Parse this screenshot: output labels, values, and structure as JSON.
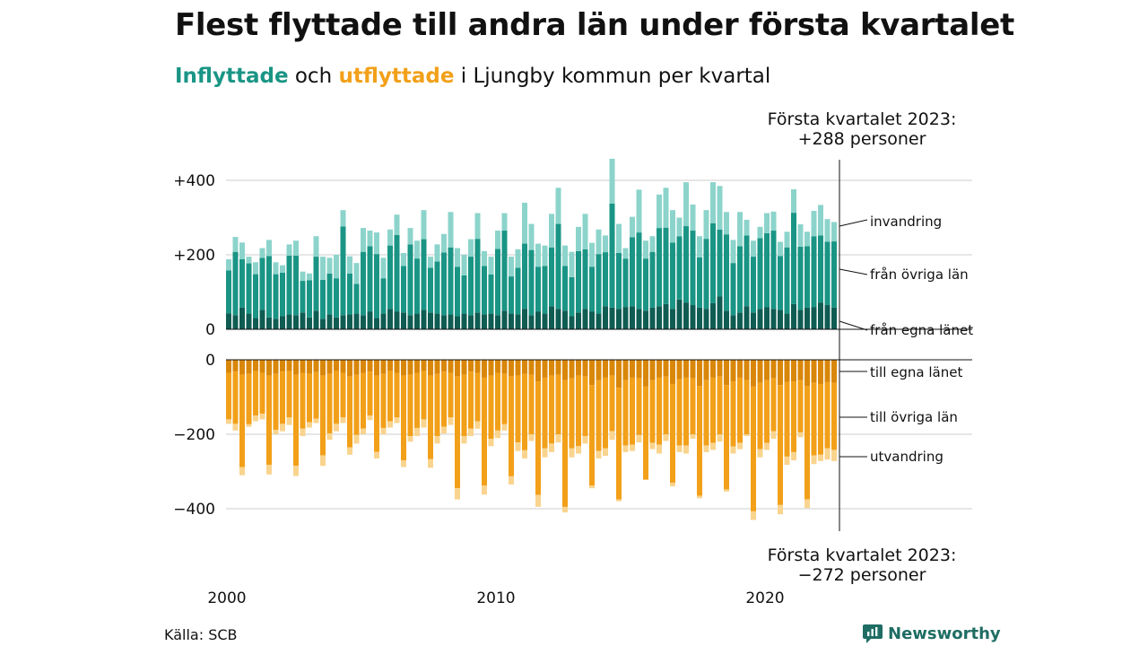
{
  "title": "Flest flyttade till andra län under första kvartalet",
  "subtitle": {
    "in_word": "Inflyttade",
    "and_word": " och ",
    "out_word": "utflyttade",
    "rest": " i Ljungby kommun per kvartal"
  },
  "source": "Källa: SCB",
  "brand": "Newsworthy",
  "colors": {
    "in_dark": "#0f5c53",
    "in_mid": "#1a9585",
    "in_light": "#8cd4cb",
    "out_dark": "#d9870a",
    "out_mid": "#f2a019",
    "out_light": "#f9d48e",
    "brand": "#1f6d64"
  },
  "chart_data": {
    "type": "bar",
    "stacked": true,
    "x_start": "2000 Q1",
    "x_end": "2023 Q1",
    "x_ticks": [
      "2000",
      "2010",
      "2020"
    ],
    "y_ticks_top": [
      "+400",
      "+200",
      "0"
    ],
    "y_ticks_bottom": [
      "0",
      "−200",
      "−400"
    ],
    "ylim_top": [
      0,
      440
    ],
    "ylim_bottom": [
      -440,
      0
    ],
    "annotation_top": [
      "Första kvartalet 2023:",
      "+288 personer"
    ],
    "annotation_bottom": [
      "Första kvartalet 2023:",
      "−272 personer"
    ],
    "series_labels": {
      "invandring": "invandring",
      "fran_ovriga_lan": "från övriga län",
      "fran_egna_lanet": "från egna länet",
      "till_egna_lanet": "till egna länet",
      "till_ovriga_lan": "till övriga län",
      "utvandring": "utvandring"
    },
    "inflyttade_totals": [
      188,
      248,
      233,
      195,
      180,
      218,
      240,
      180,
      172,
      228,
      238,
      155,
      150,
      250,
      195,
      192,
      200,
      320,
      196,
      178,
      272,
      265,
      260,
      192,
      268,
      308,
      205,
      272,
      238,
      320,
      195,
      228,
      256,
      315,
      218,
      200,
      242,
      312,
      210,
      195,
      265,
      312,
      195,
      215,
      340,
      283,
      230,
      225,
      310,
      380,
      225,
      208,
      275,
      310,
      232,
      268,
      252,
      458,
      283,
      218,
      302,
      375,
      238,
      250,
      362,
      380,
      320,
      300,
      395,
      335,
      250,
      320,
      395,
      385,
      315,
      240,
      315,
      294,
      238,
      275,
      312,
      316,
      235,
      262,
      376,
      282,
      262,
      318,
      334,
      296,
      288
    ],
    "fran_egna_lanet": [
      43,
      38,
      58,
      42,
      30,
      52,
      32,
      28,
      35,
      40,
      38,
      45,
      32,
      50,
      28,
      40,
      32,
      38,
      40,
      42,
      38,
      48,
      30,
      42,
      55,
      48,
      45,
      38,
      42,
      52,
      45,
      42,
      38,
      40,
      35,
      42,
      38,
      45,
      40,
      42,
      38,
      50,
      42,
      40,
      55,
      38,
      48,
      42,
      62,
      55,
      50,
      35,
      45,
      55,
      48,
      42,
      62,
      58,
      55,
      60,
      62,
      55,
      50,
      58,
      62,
      68,
      55,
      80,
      72,
      65,
      58,
      55,
      70,
      88,
      50,
      38,
      45,
      62,
      45,
      55,
      60,
      55,
      52,
      42,
      68,
      52,
      58,
      60,
      72,
      65,
      58
    ],
    "fran_ovriga_lan": [
      115,
      170,
      130,
      135,
      118,
      140,
      165,
      120,
      117,
      158,
      160,
      85,
      100,
      145,
      105,
      110,
      105,
      238,
      110,
      80,
      170,
      175,
      172,
      95,
      170,
      205,
      125,
      190,
      148,
      190,
      120,
      140,
      168,
      180,
      133,
      103,
      157,
      198,
      130,
      105,
      178,
      215,
      100,
      125,
      175,
      175,
      120,
      128,
      158,
      228,
      120,
      105,
      165,
      160,
      120,
      160,
      145,
      280,
      150,
      130,
      185,
      205,
      140,
      150,
      210,
      205,
      178,
      170,
      205,
      200,
      135,
      188,
      215,
      180,
      205,
      140,
      178,
      190,
      150,
      190,
      198,
      210,
      145,
      178,
      245,
      170,
      165,
      190,
      180,
      170,
      178
    ],
    "invandring": [
      30,
      40,
      45,
      18,
      32,
      26,
      43,
      32,
      20,
      30,
      40,
      25,
      18,
      55,
      62,
      42,
      63,
      44,
      46,
      56,
      64,
      42,
      58,
      55,
      43,
      55,
      35,
      44,
      48,
      78,
      30,
      46,
      50,
      95,
      50,
      55,
      47,
      69,
      40,
      48,
      49,
      47,
      53,
      50,
      110,
      70,
      62,
      55,
      90,
      97,
      55,
      68,
      65,
      95,
      64,
      66,
      45,
      120,
      78,
      28,
      55,
      115,
      48,
      42,
      90,
      107,
      87,
      50,
      118,
      70,
      57,
      77,
      110,
      117,
      60,
      62,
      92,
      42,
      43,
      30,
      54,
      51,
      38,
      42,
      63,
      60,
      39,
      68,
      82,
      61,
      52
    ],
    "utflyttade_totals": [
      -172,
      -190,
      -310,
      -180,
      -165,
      -160,
      -308,
      -200,
      -192,
      -175,
      -312,
      -205,
      -182,
      -170,
      -285,
      -215,
      -192,
      -170,
      -255,
      -225,
      -200,
      -162,
      -265,
      -200,
      -182,
      -170,
      -288,
      -220,
      -205,
      -182,
      -290,
      -225,
      -198,
      -175,
      -375,
      -225,
      -205,
      -185,
      -362,
      -232,
      -210,
      -190,
      -335,
      -245,
      -265,
      -218,
      -395,
      -262,
      -248,
      -222,
      -410,
      -262,
      -252,
      -225,
      -345,
      -265,
      -258,
      -215,
      -380,
      -248,
      -245,
      -222,
      -320,
      -240,
      -252,
      -218,
      -340,
      -248,
      -252,
      -212,
      -372,
      -248,
      -242,
      -220,
      -354,
      -252,
      -240,
      -205,
      -430,
      -262,
      -242,
      -212,
      -415,
      -282,
      -270,
      -208,
      -398,
      -280,
      -272,
      -268,
      -272
    ],
    "till_egna_lanet": [
      -35,
      -32,
      -40,
      -38,
      -30,
      -35,
      -42,
      -38,
      -32,
      -30,
      -40,
      -35,
      -38,
      -33,
      -42,
      -38,
      -30,
      -35,
      -45,
      -40,
      -35,
      -32,
      -42,
      -38,
      -30,
      -35,
      -42,
      -40,
      -35,
      -30,
      -42,
      -38,
      -32,
      -35,
      -45,
      -40,
      -32,
      -35,
      -48,
      -42,
      -35,
      -38,
      -45,
      -42,
      -38,
      -40,
      -58,
      -48,
      -42,
      -40,
      -55,
      -50,
      -42,
      -45,
      -68,
      -55,
      -48,
      -42,
      -75,
      -55,
      -48,
      -50,
      -72,
      -55,
      -48,
      -45,
      -65,
      -52,
      -48,
      -50,
      -70,
      -55,
      -48,
      -45,
      -68,
      -58,
      -48,
      -55,
      -72,
      -62,
      -55,
      -50,
      -68,
      -60,
      -58,
      -55,
      -70,
      -62,
      -65,
      -60,
      -62
    ],
    "till_ovriga_lan": [
      -125,
      -140,
      -248,
      -135,
      -120,
      -110,
      -240,
      -150,
      -140,
      -125,
      -245,
      -150,
      -130,
      -125,
      -215,
      -160,
      -142,
      -120,
      -190,
      -162,
      -150,
      -118,
      -205,
      -145,
      -135,
      -120,
      -228,
      -165,
      -148,
      -130,
      -225,
      -167,
      -148,
      -120,
      -300,
      -165,
      -153,
      -130,
      -290,
      -170,
      -155,
      -135,
      -268,
      -180,
      -205,
      -160,
      -305,
      -190,
      -183,
      -160,
      -340,
      -188,
      -190,
      -160,
      -270,
      -190,
      -190,
      -150,
      -300,
      -175,
      -180,
      -152,
      -250,
      -168,
      -180,
      -155,
      -265,
      -178,
      -182,
      -150,
      -295,
      -175,
      -175,
      -155,
      -280,
      -175,
      -175,
      -145,
      -335,
      -178,
      -168,
      -142,
      -322,
      -200,
      -190,
      -140,
      -305,
      -195,
      -190,
      -178,
      -180
    ],
    "utvandring": [
      -12,
      -18,
      -22,
      -7,
      -15,
      -15,
      -26,
      -12,
      -20,
      -20,
      -27,
      -20,
      -14,
      -12,
      -28,
      -17,
      -20,
      -15,
      -20,
      -23,
      -15,
      -12,
      -18,
      -17,
      -17,
      -15,
      -18,
      -15,
      -22,
      -22,
      -23,
      -20,
      -18,
      -20,
      -30,
      -20,
      -20,
      -20,
      -24,
      -20,
      -20,
      -17,
      -22,
      -23,
      -22,
      -18,
      -32,
      -24,
      -23,
      -22,
      -15,
      -24,
      -20,
      -20,
      -7,
      -20,
      -20,
      -23,
      -5,
      -18,
      -17,
      -20,
      2,
      -17,
      -24,
      -18,
      -10,
      -18,
      -22,
      -12,
      -7,
      -18,
      -19,
      -20,
      -6,
      -19,
      -17,
      -5,
      -23,
      -22,
      -19,
      -20,
      -25,
      -22,
      -22,
      -13,
      -23,
      -23,
      -17,
      -30,
      -30
    ]
  }
}
